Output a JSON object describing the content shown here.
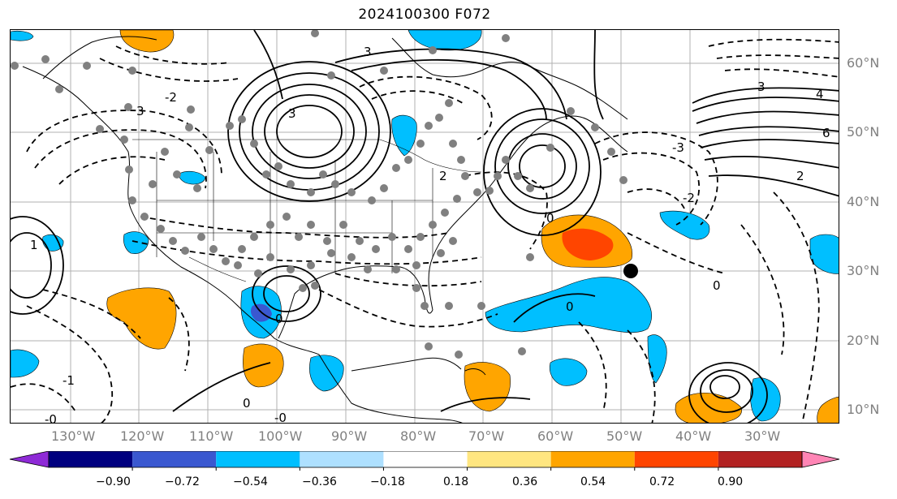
{
  "title": "2024100300 F072",
  "lat_labels": [
    "60°N",
    "50°N",
    "40°N",
    "30°N",
    "20°N",
    "10°N"
  ],
  "lon_labels": [
    "130°W",
    "120°W",
    "110°W",
    "100°W",
    "90°W",
    "80°W",
    "70°W",
    "60°W",
    "50°W",
    "40°W",
    "30°W"
  ],
  "colorbar": {
    "ticks": [
      "−0.90",
      "−0.72",
      "−0.54",
      "−0.36",
      "−0.18",
      "0.18",
      "0.36",
      "0.54",
      "0.72",
      "0.90"
    ],
    "colors": [
      "#8e2ad6",
      "#00007f",
      "#3a58d0",
      "#00bfff",
      "#aee0ff",
      "#ffffff",
      "#ffe680",
      "#ffa500",
      "#ff4500",
      "#b22222",
      "#ff85b5"
    ]
  },
  "contour_labels": [
    "-0",
    "0",
    "0",
    "0",
    "0",
    "-0",
    "3",
    "3",
    "3",
    "3",
    "4",
    "6",
    "2",
    "-2",
    "-3",
    "1",
    "-1",
    "-2",
    "2",
    "0"
  ],
  "colors": {
    "positive_dark": "#ff4500",
    "positive_mid": "#ffa500",
    "negative_mid": "#00bfff",
    "negative_dark": "#3a58d0",
    "axis_label": "#808080",
    "contour": "#000000"
  },
  "icons": {
    "observation_marker": "gray-dot",
    "storm_marker": "black-dot"
  }
}
